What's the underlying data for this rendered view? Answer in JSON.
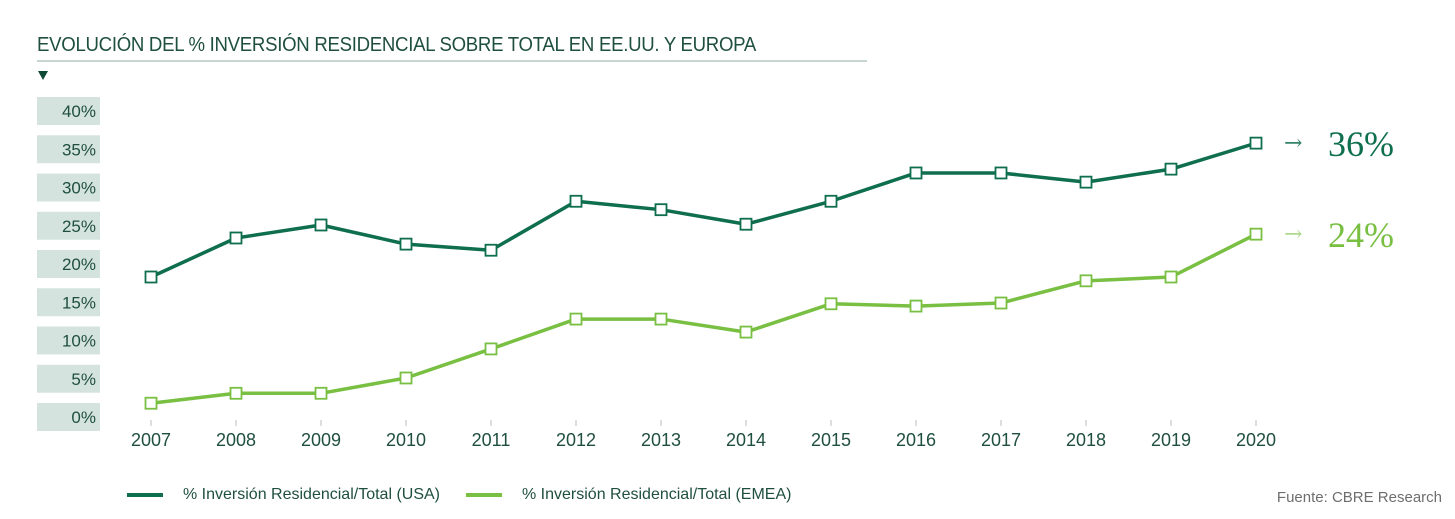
{
  "title": "EVOLUCIÓN DEL % INVERSIÓN RESIDENCIAL SOBRE TOTAL EN EE.UU. Y EUROPA",
  "source": "Fuente: CBRE Research",
  "colors": {
    "usa": "#0e6e4e",
    "emea": "#78bf42",
    "axis_text": "#1f4f3f",
    "ylabel_bg": "#d5e3de"
  },
  "chart_data": {
    "type": "line",
    "title": "EVOLUCIÓN DEL % INVERSIÓN RESIDENCIAL SOBRE TOTAL EN EE.UU. Y EUROPA",
    "xlabel": "",
    "ylabel": "",
    "x": [
      "2007",
      "2008",
      "2009",
      "2010",
      "2011",
      "2012",
      "2013",
      "2014",
      "2015",
      "2016",
      "2017",
      "2018",
      "2019",
      "2020"
    ],
    "y_ticks": [
      "0%",
      "5%",
      "10%",
      "15%",
      "20%",
      "25%",
      "30%",
      "35%",
      "40%"
    ],
    "ylim": [
      0,
      40
    ],
    "grid": false,
    "legend_position": "bottom-left",
    "series": [
      {
        "name": "% Inversión Residencial/Total (USA)",
        "key": "usa",
        "values": [
          18.3,
          23.4,
          25.1,
          22.6,
          21.8,
          28.2,
          27.1,
          25.2,
          28.2,
          31.9,
          31.9,
          30.7,
          32.4,
          35.8
        ],
        "end_label": "36%"
      },
      {
        "name": "% Inversión Residencial/Total (EMEA)",
        "key": "emea",
        "values": [
          1.8,
          3.1,
          3.1,
          5.1,
          8.9,
          12.8,
          12.8,
          11.1,
          14.8,
          14.5,
          14.9,
          17.8,
          18.3,
          23.9
        ],
        "end_label": "24%"
      }
    ],
    "end_arrow": "→"
  }
}
